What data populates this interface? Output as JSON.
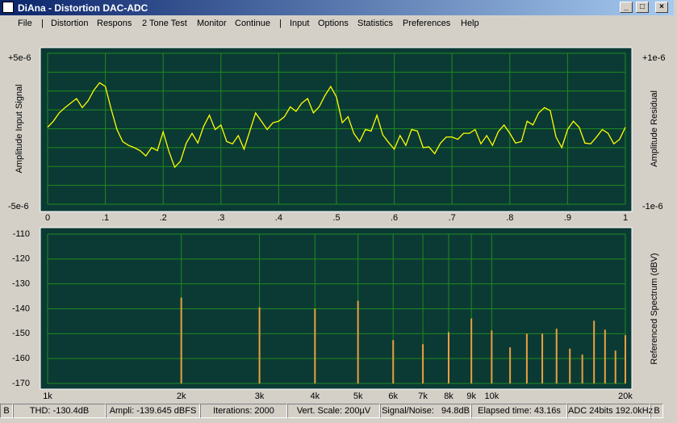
{
  "window": {
    "title": "DiAna - Distortion DAC-ADC"
  },
  "menu": [
    "File",
    "|",
    "Distortion",
    "Respons",
    "2 Tone Test",
    "Monitor",
    "Continue",
    "|",
    "Input",
    "Options",
    "Statistics",
    "Preferences",
    "Help"
  ],
  "chart_data": [
    {
      "type": "line",
      "y_label": "Amplitude Input Signal",
      "y2_label": "Amplitude Residual",
      "grid": true,
      "xlim": [
        0,
        1
      ],
      "xticks": [
        0,
        {
          "value": 0.1,
          "label": ".1"
        },
        {
          "value": 0.2,
          "label": ".2"
        },
        {
          "value": 0.3,
          "label": ".3"
        },
        {
          "value": 0.4,
          "label": ".4"
        },
        {
          "value": 0.5,
          "label": ".5"
        },
        {
          "value": 0.6,
          "label": ".6"
        },
        {
          "value": 0.7,
          "label": ".7"
        },
        {
          "value": 0.8,
          "label": ".8"
        },
        {
          "value": 0.9,
          "label": ".9"
        },
        1
      ],
      "ylim": [
        -5e-06,
        5e-06
      ],
      "yticks": [
        {
          "value": 5e-06,
          "label": "+5e-6"
        },
        {
          "value": -5e-06,
          "label": "-5e-6"
        }
      ],
      "y2lim": [
        -1e-06,
        1e-06
      ],
      "y2ticks": [
        {
          "value": 1e-06,
          "label": "+1e-6"
        },
        {
          "value": -1e-06,
          "label": "-1e-6"
        }
      ],
      "x": [
        0,
        0.01,
        0.02,
        0.03,
        0.04,
        0.05,
        0.06,
        0.07,
        0.08,
        0.09,
        0.1,
        0.11,
        0.12,
        0.13,
        0.14,
        0.15,
        0.16,
        0.17,
        0.18,
        0.19,
        0.2,
        0.21,
        0.22,
        0.23,
        0.24,
        0.25,
        0.26,
        0.27,
        0.28,
        0.29,
        0.3,
        0.31,
        0.32,
        0.33,
        0.34,
        0.35,
        0.36,
        0.37,
        0.38,
        0.39,
        0.4,
        0.41,
        0.42,
        0.43,
        0.44,
        0.45,
        0.46,
        0.47,
        0.48,
        0.49,
        0.5,
        0.51,
        0.52,
        0.53,
        0.54,
        0.55,
        0.56,
        0.57,
        0.58,
        0.59,
        0.6,
        0.61,
        0.62,
        0.63,
        0.64,
        0.65,
        0.66,
        0.67,
        0.68,
        0.69,
        0.7,
        0.71,
        0.72,
        0.73,
        0.74,
        0.75,
        0.76,
        0.77,
        0.78,
        0.79,
        0.8,
        0.81,
        0.82,
        0.83,
        0.84,
        0.85,
        0.86,
        0.87,
        0.88,
        0.89,
        0.9,
        0.91,
        0.92,
        0.93,
        0.94,
        0.95,
        0.96,
        0.97,
        0.98,
        0.99,
        1
      ],
      "series": [
        {
          "color": "#ffff00",
          "axis": "y2",
          "values": [
            2e-08,
            1e-07,
            2.1e-07,
            2.8e-07,
            3.4e-07,
            4e-07,
            2.8e-07,
            3.7e-07,
            5.1e-07,
            6.1e-07,
            5.6e-07,
            2.6e-07,
            -1e-08,
            -1.7e-07,
            -2.2e-07,
            -2.5e-07,
            -2.9e-07,
            -3.6e-07,
            -2.5e-07,
            -2.9e-07,
            -4e-08,
            -3e-07,
            -5.1e-07,
            -4.3e-07,
            -1.9e-07,
            -6e-08,
            -1.9e-07,
            3e-08,
            1.8e-07,
            -1e-08,
            5e-08,
            -1.7e-07,
            -2e-07,
            -9e-08,
            -2.7e-07,
            -3e-08,
            2.1e-07,
            1e-07,
            -1e-08,
            8e-08,
            1e-07,
            1.6e-07,
            2.9e-07,
            2.3e-07,
            3.4e-07,
            4e-07,
            2.1e-07,
            2.9e-07,
            4.4e-07,
            5.6e-07,
            4.2e-07,
            8e-08,
            1.6e-07,
            -6e-08,
            -1.7e-07,
            -1e-08,
            -3e-08,
            1.8e-07,
            -8e-08,
            -1.8e-07,
            -2.7e-07,
            -9e-08,
            -2.2e-07,
            -1e-08,
            -3e-08,
            -2.5e-07,
            -2.4e-07,
            -3.3e-07,
            -1.9e-07,
            -1.1e-07,
            -1.1e-07,
            -1.4e-07,
            -6e-08,
            -6e-08,
            -1e-08,
            -2e-07,
            -9e-08,
            -2.2e-07,
            -4e-08,
            5e-08,
            -6e-08,
            -1.9e-07,
            -1.7e-07,
            1e-07,
            5e-08,
            2.1e-07,
            2.8e-07,
            2.4e-07,
            -1.1e-07,
            -2.5e-07,
            -1e-08,
            1e-07,
            2e-08,
            -1.9e-07,
            -2e-07,
            -1.1e-07,
            -1e-08,
            -6e-08,
            -2e-07,
            -1.4e-07,
            2e-08
          ]
        }
      ]
    },
    {
      "type": "bar",
      "y2_label": "Referenced Spectrum (dBV)",
      "grid": true,
      "log_x": true,
      "xlim": [
        1000,
        20000
      ],
      "xticks": [
        {
          "value": 1000,
          "label": "1k"
        },
        {
          "value": 2000,
          "label": "2k"
        },
        {
          "value": 3000,
          "label": "3k"
        },
        {
          "value": 4000,
          "label": "4k"
        },
        {
          "value": 5000,
          "label": "5k"
        },
        {
          "value": 6000,
          "label": "6k"
        },
        {
          "value": 7000,
          "label": "7k"
        },
        {
          "value": 8000,
          "label": "8k"
        },
        {
          "value": 9000,
          "label": "9k"
        },
        {
          "value": 10000,
          "label": "10k"
        },
        {
          "value": 20000,
          "label": "20k"
        }
      ],
      "ylim": [
        -170,
        -110
      ],
      "yticks": [
        -110,
        -120,
        -130,
        -140,
        -150,
        -160,
        -170
      ],
      "x": [
        2000,
        3000,
        4000,
        5000,
        6000,
        7000,
        8000,
        9000,
        10000,
        11000,
        12000,
        13000,
        14000,
        15000,
        16000,
        17000,
        18000,
        19000,
        20000
      ],
      "series": [
        {
          "color": "#e8a040",
          "values": [
            -135.5,
            -139.4,
            -140,
            -136.8,
            -152.6,
            -154.2,
            -149.4,
            -143.9,
            -148.7,
            -155.5,
            -150,
            -150,
            -148,
            -156,
            -158.4,
            -144.8,
            -148.4,
            -156.8,
            -150.6
          ]
        }
      ]
    }
  ],
  "status_bar": [
    "B",
    "THD: -130.4dB",
    "Ampli: -139.645 dBFS",
    "Iterations: 2000",
    "Vert. Scale: 200µV",
    "Signal/Noise:   94.8dB",
    "Elapsed time: 43.16s",
    "ADC 24bits 192.0kHz",
    "B"
  ]
}
